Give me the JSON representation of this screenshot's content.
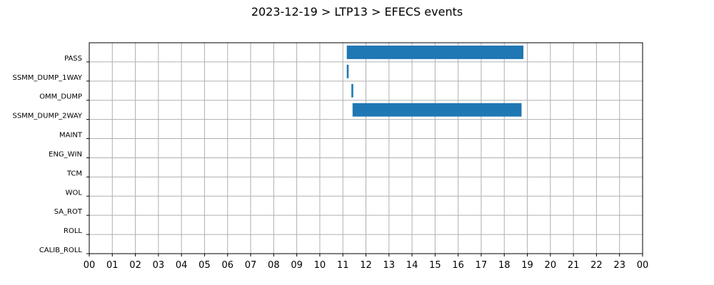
{
  "chart_data": {
    "type": "bar",
    "orientation": "horizontal",
    "title": "2023-12-19 > LTP13 > EFECS events",
    "xlabel": "",
    "ylabel": "",
    "categories": [
      "PASS",
      "SSMM_DUMP_1WAY",
      "OMM_DUMP",
      "SSMM_DUMP_2WAY",
      "MAINT",
      "ENG_WIN",
      "TCM",
      "WOL",
      "SA_ROT",
      "ROLL",
      "CALIB_ROLL"
    ],
    "x_tick_labels": [
      "00",
      "01",
      "02",
      "03",
      "04",
      "05",
      "06",
      "07",
      "08",
      "09",
      "10",
      "11",
      "12",
      "13",
      "14",
      "15",
      "16",
      "17",
      "18",
      "19",
      "20",
      "21",
      "22",
      "23",
      "00"
    ],
    "xlim": [
      0,
      24
    ],
    "x_unit": "hours",
    "grid": true,
    "bar_color": "#1f77b4",
    "events": [
      {
        "category": "PASS",
        "start": 11.17,
        "end": 18.83
      },
      {
        "category": "SSMM_DUMP_1WAY",
        "start": 11.17,
        "end": 11.25
      },
      {
        "category": "OMM_DUMP",
        "start": 11.37,
        "end": 11.45
      },
      {
        "category": "SSMM_DUMP_2WAY",
        "start": 11.42,
        "end": 18.75
      }
    ]
  }
}
